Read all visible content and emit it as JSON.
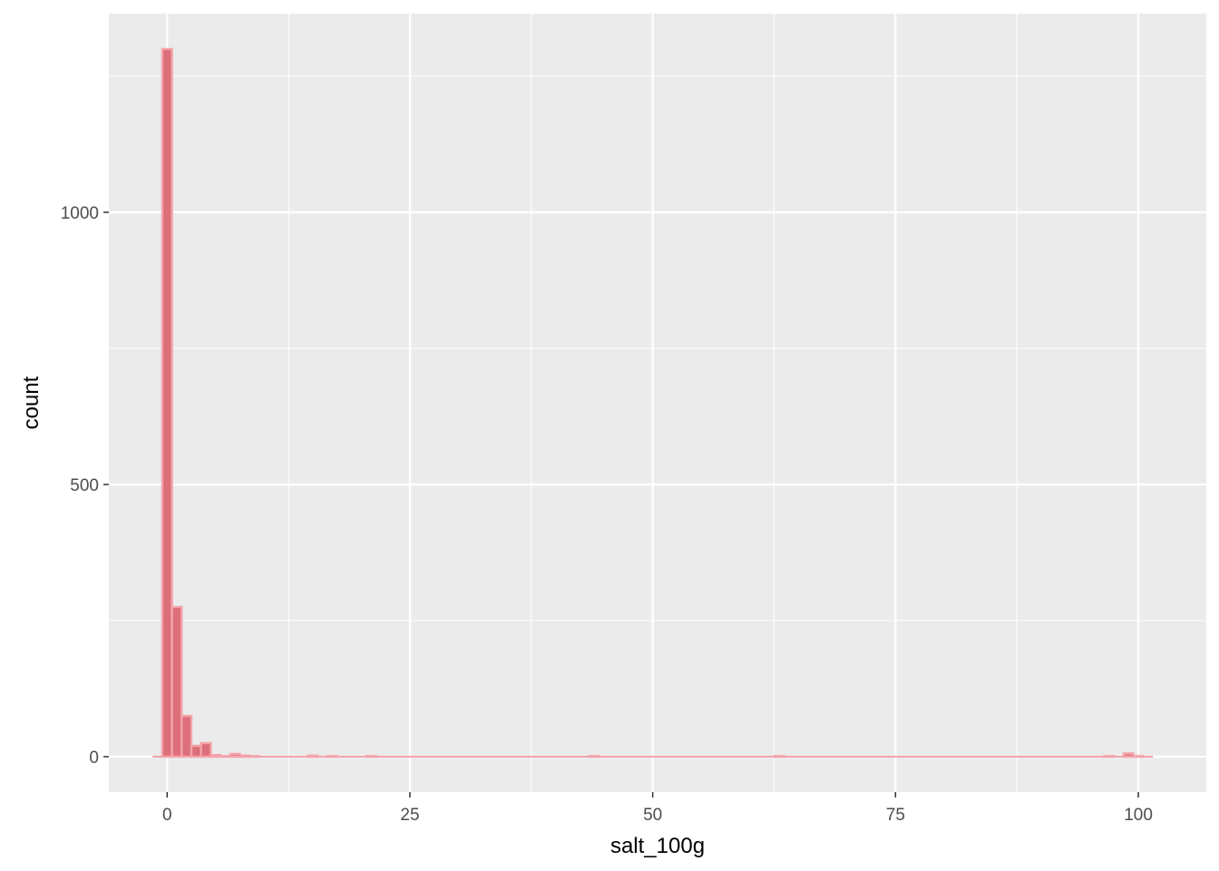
{
  "chart_data": {
    "type": "bar",
    "subtype": "histogram",
    "title": "",
    "xlabel": "salt_100g",
    "ylabel": "count",
    "xlim": [
      -6,
      107
    ],
    "ylim": [
      -65,
      1365
    ],
    "bin_width": 1,
    "x_ticks": [
      0,
      25,
      50,
      75,
      100
    ],
    "x_tick_labels": [
      "0",
      "25",
      "50",
      "75",
      "100"
    ],
    "y_ticks": [
      0,
      500,
      1000
    ],
    "y_tick_labels": [
      "0",
      "500",
      "1000"
    ],
    "grid": true,
    "bins": [
      {
        "x": 0,
        "count": 1300
      },
      {
        "x": 1,
        "count": 275
      },
      {
        "x": 2,
        "count": 75
      },
      {
        "x": 3,
        "count": 20
      },
      {
        "x": 4,
        "count": 25
      },
      {
        "x": 5,
        "count": 3
      },
      {
        "x": 6,
        "count": 1
      },
      {
        "x": 7,
        "count": 5
      },
      {
        "x": 8,
        "count": 2
      },
      {
        "x": 9,
        "count": 1
      },
      {
        "x": 15,
        "count": 2
      },
      {
        "x": 17,
        "count": 1
      },
      {
        "x": 21,
        "count": 1
      },
      {
        "x": 44,
        "count": 1
      },
      {
        "x": 63,
        "count": 1
      },
      {
        "x": 97,
        "count": 1
      },
      {
        "x": 99,
        "count": 6
      },
      {
        "x": 100,
        "count": 1
      }
    ],
    "fill_color": "#dc6f79",
    "outline_color": "#f4a3aa",
    "panel_color": "#ebebeb",
    "grid_color": "#ffffff"
  }
}
